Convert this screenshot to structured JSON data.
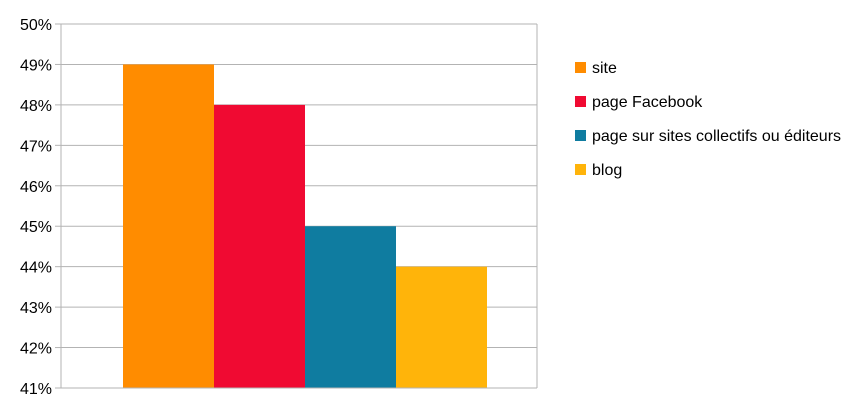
{
  "chart_data": {
    "type": "bar",
    "categories": [
      "site",
      "page Facebook",
      "page sur sites collectifs ou éditeurs",
      "blog"
    ],
    "series": [
      {
        "name": "site",
        "value": 49,
        "color": "#ff8c00"
      },
      {
        "name": "page Facebook",
        "value": 48,
        "color": "#f00a32"
      },
      {
        "name": "page sur sites collectifs ou éditeurs",
        "value": 45,
        "color": "#0f7ca0"
      },
      {
        "name": "blog",
        "value": 44,
        "color": "#ffb40a"
      }
    ],
    "yticks": [
      "50%",
      "49%",
      "48%",
      "47%",
      "46%",
      "45%",
      "44%",
      "43%",
      "42%",
      "41%"
    ],
    "ylim": [
      41,
      50
    ],
    "title": "",
    "xlabel": "",
    "ylabel": "",
    "grid": true,
    "legend_position": "right"
  }
}
